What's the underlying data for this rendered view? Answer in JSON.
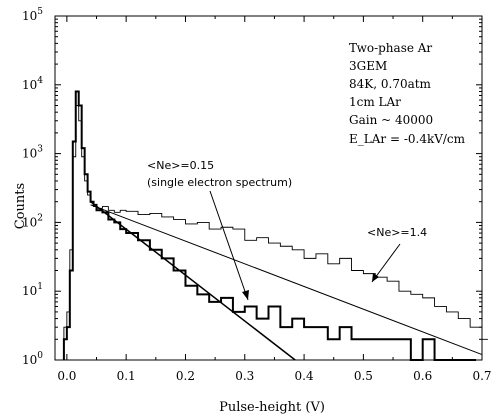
{
  "chart_data": {
    "type": "histogram",
    "title": "",
    "xlabel": "Pulse-height (V)",
    "ylabel": "Counts",
    "xlim": [
      -0.02,
      0.7
    ],
    "ylim": [
      1,
      100000
    ],
    "log_y": true,
    "x_ticks": [
      0.0,
      0.1,
      0.2,
      0.3,
      0.4,
      0.5,
      0.6,
      0.7
    ],
    "x_tick_labels": [
      "0.0",
      "0.1",
      "0.2",
      "0.3",
      "0.4",
      "0.5",
      "0.6",
      "0.7"
    ],
    "y_ticks": [
      1,
      10,
      100,
      1000,
      10000,
      100000
    ],
    "y_tick_labels": [
      "10^0",
      "10^1",
      "10^2",
      "10^3",
      "10^4",
      "10^5"
    ],
    "info_box": [
      "Two-phase Ar",
      "3GEM",
      "84K, 0.70atm",
      "1cm LAr",
      "Gain ~ 40000",
      "E_LAr = -0.4kV/cm"
    ],
    "annotations": [
      {
        "text": "<Ne>=0.15",
        "subtext": "(single electron spectrum)"
      },
      {
        "text": "<Ne>=1.4"
      }
    ],
    "series": [
      {
        "style": "thin",
        "x": [
          -0.005,
          0.0,
          0.005,
          0.01,
          0.015,
          0.02,
          0.025,
          0.03,
          0.035,
          0.04,
          0.045,
          0.05,
          0.06,
          0.07,
          0.08,
          0.09,
          0.1,
          0.12,
          0.14,
          0.16,
          0.18,
          0.2,
          0.22,
          0.24,
          0.26,
          0.28,
          0.3,
          0.32,
          0.34,
          0.36,
          0.38,
          0.4,
          0.42,
          0.44,
          0.46,
          0.48,
          0.5,
          0.52,
          0.54,
          0.56,
          0.58,
          0.6,
          0.62,
          0.64,
          0.66,
          0.68,
          0.7
        ],
        "y": [
          3,
          5,
          40,
          900,
          5000,
          3000,
          900,
          400,
          250,
          200,
          170,
          160,
          170,
          150,
          140,
          150,
          145,
          130,
          135,
          120,
          110,
          95,
          100,
          80,
          85,
          80,
          55,
          60,
          50,
          45,
          40,
          30,
          35,
          25,
          30,
          20,
          18,
          16,
          14,
          10,
          9,
          8,
          6,
          5,
          4,
          3,
          2
        ]
      },
      {
        "style": "bold",
        "x": [
          -0.005,
          0.0,
          0.005,
          0.01,
          0.015,
          0.02,
          0.025,
          0.03,
          0.035,
          0.04,
          0.045,
          0.05,
          0.06,
          0.07,
          0.08,
          0.09,
          0.1,
          0.12,
          0.14,
          0.16,
          0.18,
          0.2,
          0.22,
          0.24,
          0.26,
          0.28,
          0.3,
          0.32,
          0.34,
          0.36,
          0.38,
          0.4,
          0.42,
          0.44,
          0.46,
          0.48,
          0.5,
          0.52,
          0.54,
          0.56,
          0.58,
          0.6,
          0.62,
          0.64,
          0.66,
          0.68
        ],
        "y": [
          2,
          3,
          20,
          1500,
          8000,
          5000,
          1200,
          500,
          280,
          200,
          180,
          150,
          140,
          110,
          100,
          80,
          70,
          55,
          40,
          30,
          20,
          12,
          9,
          7,
          8,
          5,
          6,
          4,
          6,
          3,
          4,
          3,
          3,
          2,
          3,
          2,
          2,
          2,
          2,
          2,
          1,
          2,
          1,
          1,
          1,
          1
        ]
      }
    ],
    "fits": [
      {
        "style": "fit",
        "points": [
          [
            0.04,
            180
          ],
          [
            0.7,
            1.2
          ]
        ]
      },
      {
        "style": "fit",
        "points": [
          [
            0.04,
            200
          ],
          [
            0.385,
            1
          ]
        ]
      }
    ]
  }
}
